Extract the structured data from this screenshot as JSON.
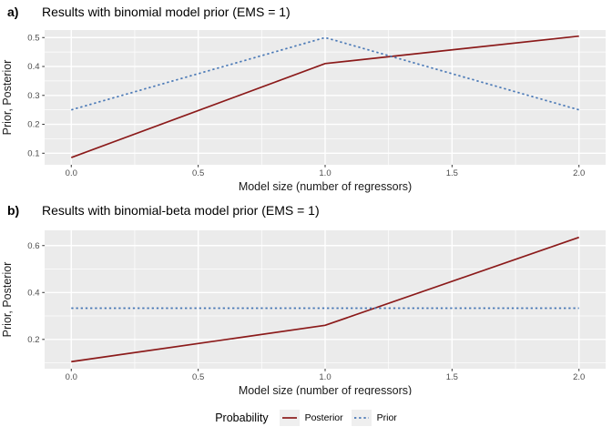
{
  "figure": {
    "legend": {
      "title": "Probability",
      "items": [
        {
          "label": "Posterior",
          "style": "solid",
          "color": "#8B1A1A"
        },
        {
          "label": "Prior",
          "style": "dashed",
          "color": "#4676B5"
        }
      ]
    }
  },
  "colors": {
    "panel_bg": "#EBEBEB",
    "gridline": "#FFFFFF",
    "tick_mark": "#333333",
    "tick_text": "#4D4D4D",
    "axis_title_text": "#1A1A1A",
    "title_text": "#000000",
    "posterior": "#8B1A1A",
    "prior": "#4676B5",
    "legend_key_bg": "#EFEFEF"
  },
  "chart_data": [
    {
      "type": "line",
      "panel_label": "a)",
      "title": "Results with binomial model prior (EMS = 1)",
      "xlabel": "Model size (number of regressors)",
      "ylabel": "Prior, Posterior",
      "x": [
        0,
        1,
        2
      ],
      "series": [
        {
          "name": "Posterior",
          "style": "solid",
          "color": "#8B1A1A",
          "values": [
            0.085,
            0.41,
            0.505
          ]
        },
        {
          "name": "Prior",
          "style": "dashed",
          "color": "#4676B5",
          "values": [
            0.25,
            0.5,
            0.25
          ]
        }
      ],
      "xlim": [
        -0.105,
        2.105
      ],
      "ylim": [
        0.06,
        0.526
      ],
      "x_ticks": [
        0.0,
        0.5,
        1.0,
        1.5,
        2.0
      ],
      "x_tick_labels": [
        "0.0",
        "0.5",
        "1.0",
        "1.5",
        "2.0"
      ],
      "x_minor": [
        0.25,
        0.75,
        1.25,
        1.75
      ],
      "y_ticks": [
        0.1,
        0.2,
        0.3,
        0.4,
        0.5
      ],
      "y_tick_labels": [
        "0.1",
        "0.2",
        "0.3",
        "0.4",
        "0.5"
      ],
      "y_minor": [
        0.05,
        0.15,
        0.25,
        0.35,
        0.45
      ],
      "grid": true,
      "legend_position": "bottom"
    },
    {
      "type": "line",
      "panel_label": "b)",
      "title": "Results with binomial-beta model prior (EMS = 1)",
      "xlabel": "Model size (number of regressors)",
      "ylabel": "Prior, Posterior",
      "x": [
        0,
        1,
        2
      ],
      "series": [
        {
          "name": "Posterior",
          "style": "solid",
          "color": "#8B1A1A",
          "values": [
            0.105,
            0.26,
            0.635
          ]
        },
        {
          "name": "Prior",
          "style": "dashed",
          "color": "#4676B5",
          "values": [
            0.333,
            0.333,
            0.333
          ]
        }
      ],
      "xlim": [
        -0.105,
        2.105
      ],
      "ylim": [
        0.075,
        0.665
      ],
      "x_ticks": [
        0.0,
        0.5,
        1.0,
        1.5,
        2.0
      ],
      "x_tick_labels": [
        "0.0",
        "0.5",
        "1.0",
        "1.5",
        "2.0"
      ],
      "x_minor": [
        0.25,
        0.75,
        1.25,
        1.75
      ],
      "y_ticks": [
        0.2,
        0.4,
        0.6
      ],
      "y_tick_labels": [
        "0.2",
        "0.4",
        "0.6"
      ],
      "y_minor": [
        0.1,
        0.3,
        0.5
      ],
      "grid": true,
      "legend_position": "bottom"
    }
  ]
}
